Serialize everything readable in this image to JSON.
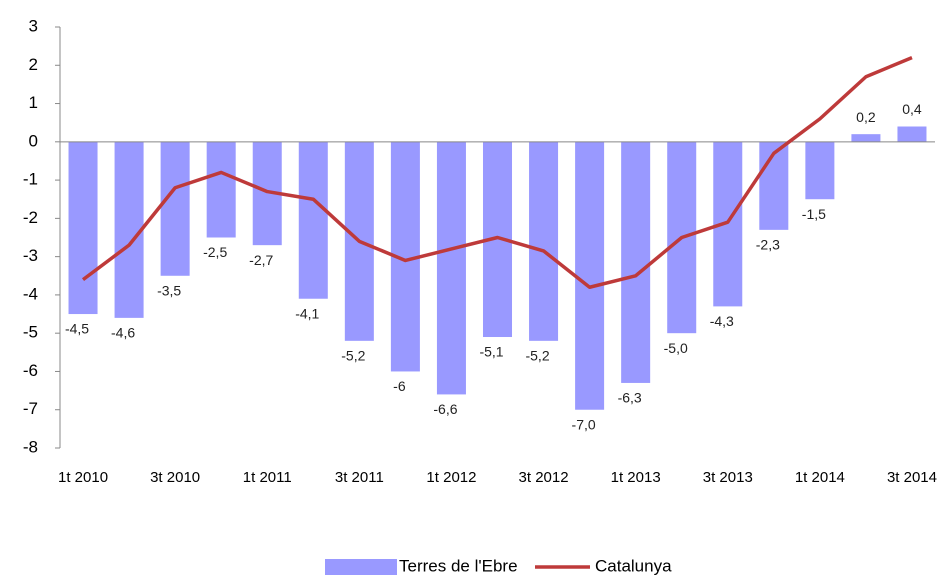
{
  "chart_data": {
    "type": "bar",
    "categories": [
      "1t 2010",
      null,
      "3t 2010",
      null,
      "1t 2011",
      null,
      "3t 2011",
      null,
      "1t 2012",
      null,
      "3t 2012",
      null,
      "1t 2013",
      null,
      "3t 2013",
      null,
      "1t 2014",
      null,
      "3t 2014"
    ],
    "series": [
      {
        "name": "Terres de l'Ebre",
        "type": "bar",
        "color": "#9999ff",
        "values": [
          -4.5,
          -4.6,
          -3.5,
          -2.5,
          -2.7,
          -4.1,
          -5.2,
          -6,
          -6.6,
          -5.1,
          -5.2,
          -7.0,
          -6.3,
          -5.0,
          -4.3,
          -2.3,
          -1.5,
          0.2,
          0.4
        ],
        "value_labels": [
          "-4,5",
          "-4,6",
          "-3,5",
          "-2,5",
          "-2,7",
          "-4,1",
          "-5,2",
          "-6",
          "-6,6",
          "-5,1",
          "-5,2",
          "-7,0",
          "-6,3",
          "-5,0",
          "-4,3",
          "-2,3",
          "-1,5",
          "0,2",
          "0,4"
        ]
      },
      {
        "name": "Catalunya",
        "type": "line",
        "color": "#be3a3a",
        "values": [
          -3.6,
          -2.7,
          -1.2,
          -0.8,
          -1.3,
          -1.5,
          -2.6,
          -3.1,
          -2.8,
          -2.5,
          -2.85,
          -3.8,
          -3.5,
          -2.5,
          -2.1,
          -0.3,
          0.6,
          1.7,
          2.2
        ]
      }
    ],
    "ylim": [
      -8,
      3
    ],
    "yticks": [
      -8,
      -7,
      -6,
      -5,
      -4,
      -3,
      -2,
      -1,
      0,
      1,
      2,
      3
    ],
    "grid": false,
    "legend": "bottom"
  }
}
